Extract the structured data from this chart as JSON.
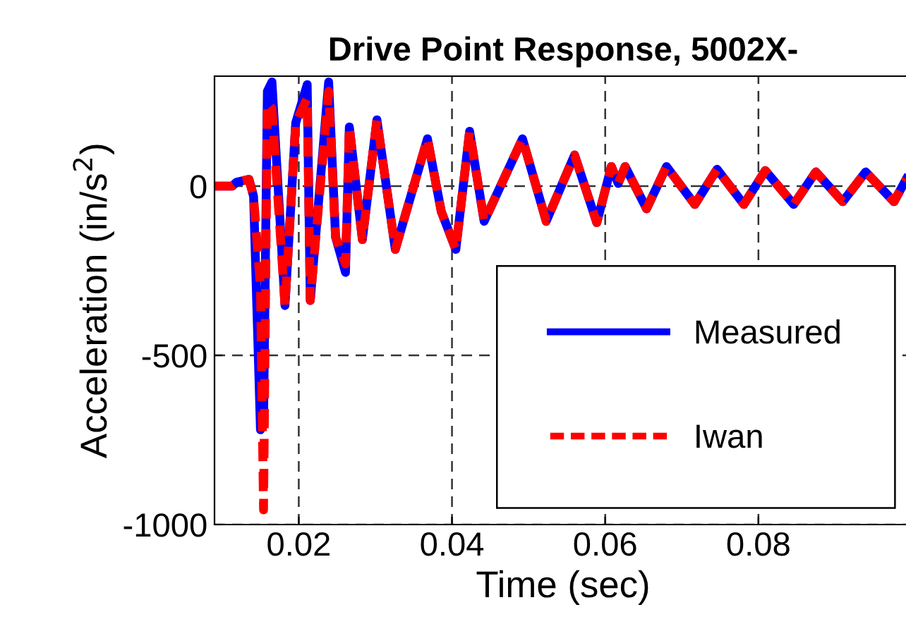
{
  "chart_data": {
    "type": "line",
    "title": "Drive Point Response, 5002X-",
    "xlabel": "Time (sec)",
    "ylabel": "Acceleration (in/s$^{2}$)",
    "x": [
      0.009,
      0.0113,
      0.0119,
      0.0135,
      0.0141,
      0.015,
      0.0154,
      0.0159,
      0.0165,
      0.0182,
      0.0196,
      0.0211,
      0.0215,
      0.0239,
      0.0248,
      0.0261,
      0.0266,
      0.0283,
      0.0302,
      0.0326,
      0.0368,
      0.0386,
      0.0405,
      0.0423,
      0.0442,
      0.0492,
      0.0523,
      0.056,
      0.0589,
      0.0608,
      0.0617,
      0.0626,
      0.0654,
      0.068,
      0.0717,
      0.0746,
      0.0781,
      0.0809,
      0.0846,
      0.0875,
      0.091,
      0.094,
      0.0977,
      0.0993
    ],
    "series": [
      {
        "name": "Measured",
        "color": "#0000ff",
        "line_style": "solid",
        "values": [
          0,
          0,
          12,
          20,
          -30,
          -720,
          -700,
          280,
          308,
          -353,
          187,
          300,
          -338,
          308,
          -150,
          -255,
          175,
          -158,
          196,
          -187,
          140,
          -75,
          -187,
          162,
          -104,
          140,
          -104,
          92,
          -108,
          58,
          8,
          58,
          -67,
          58,
          -54,
          50,
          -54,
          46,
          -54,
          42,
          -46,
          42,
          -46,
          21
        ]
      },
      {
        "name": "Iwan",
        "color": "#ff0000",
        "line_style": "dashed",
        "values": [
          0,
          0,
          12,
          20,
          -30,
          -300,
          -957,
          245,
          230,
          -353,
          187,
          260,
          -338,
          280,
          -150,
          -230,
          175,
          -158,
          196,
          -187,
          140,
          -75,
          -187,
          162,
          -104,
          140,
          -104,
          92,
          -108,
          58,
          8,
          58,
          -67,
          58,
          -54,
          50,
          -54,
          46,
          -54,
          42,
          -46,
          42,
          -46,
          21
        ]
      }
    ],
    "xlim": [
      0.009,
      0.1
    ],
    "ylim": [
      -1000,
      325
    ],
    "xticks": [
      0.02,
      0.04,
      0.06,
      0.08
    ],
    "yticks": [
      0,
      -500,
      -1000
    ],
    "grid": true,
    "legend": "bottom right",
    "marker": "none"
  }
}
